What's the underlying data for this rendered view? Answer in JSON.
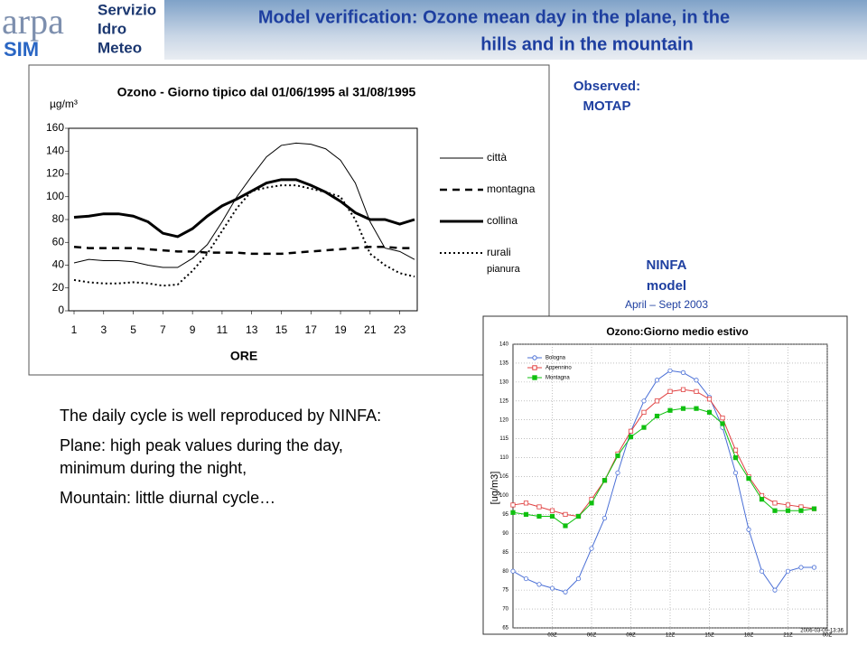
{
  "header": {
    "logo": {
      "brand": "arpa",
      "service_lines": [
        "Servizio",
        "Idro",
        "Meteo"
      ],
      "badge": "SIM"
    },
    "title_lines": [
      "Model verification: Ozone mean day in the plane, in the",
      "hills and in the mountain"
    ]
  },
  "observed_note": [
    "Observed:",
    "MOTAP"
  ],
  "model_note": [
    "NINFA",
    "model",
    "April – Sept 2003"
  ],
  "body": [
    "The daily cycle is well reproduced by NINFA:",
    "Plane: high peak values during the day, minimum during the night,",
    "Mountain:  little diurnal cycle…"
  ],
  "chart_data": [
    {
      "type": "line",
      "title": "Ozono - Giorno tipico dal 01/06/1995 al 31/08/1995",
      "y_label": "µg/m³",
      "x_label": "ORE",
      "x": [
        1,
        2,
        3,
        4,
        5,
        6,
        7,
        8,
        9,
        10,
        11,
        12,
        13,
        14,
        15,
        16,
        17,
        18,
        19,
        20,
        21,
        22,
        23,
        24
      ],
      "xlim": [
        1,
        24
      ],
      "xticks": [
        1,
        3,
        5,
        7,
        9,
        11,
        13,
        15,
        17,
        19,
        21,
        23
      ],
      "ylim": [
        0,
        160
      ],
      "yticks": [
        0,
        20,
        40,
        60,
        80,
        100,
        120,
        140,
        160
      ],
      "grid": false,
      "legend": "right",
      "series": [
        {
          "name": "città",
          "color": "#000000",
          "style": "solid",
          "line_width": 1,
          "values": [
            42,
            45,
            44,
            44,
            43,
            40,
            38,
            38,
            46,
            58,
            78,
            100,
            118,
            135,
            145,
            147,
            146,
            142,
            132,
            112,
            78,
            55,
            52,
            45
          ]
        },
        {
          "name": "montagna",
          "color": "#000000",
          "style": "dashed",
          "line_width": 2.5,
          "values": [
            56,
            55,
            55,
            55,
            55,
            54,
            53,
            52,
            52,
            51,
            51,
            51,
            50,
            50,
            50,
            51,
            52,
            53,
            54,
            55,
            56,
            56,
            55,
            55
          ]
        },
        {
          "name": "collina",
          "color": "#000000",
          "style": "solid",
          "line_width": 3,
          "values": [
            82,
            83,
            85,
            85,
            83,
            78,
            68,
            65,
            72,
            83,
            92,
            98,
            105,
            112,
            115,
            115,
            110,
            104,
            96,
            86,
            80,
            80,
            76,
            80
          ]
        },
        {
          "name": "rurali",
          "color": "#000000",
          "style": "dotted",
          "line_width": 2,
          "values": [
            27,
            25,
            24,
            24,
            25,
            24,
            22,
            23,
            35,
            50,
            70,
            90,
            105,
            108,
            110,
            110,
            107,
            104,
            100,
            80,
            50,
            40,
            33,
            30
          ]
        }
      ],
      "legend_note": "pianura"
    },
    {
      "type": "line",
      "title": "Ozono:Giorno medio estivo",
      "y_label": "[ug/m3]",
      "footer": "2006-03-09-13:36",
      "x": [
        0,
        1,
        2,
        3,
        4,
        5,
        6,
        7,
        8,
        9,
        10,
        11,
        12,
        13,
        14,
        15,
        16,
        17,
        18,
        19,
        20,
        21,
        22,
        23
      ],
      "xlim": [
        0,
        24
      ],
      "xticks": [
        {
          "value": 3,
          "label": "03Z"
        },
        {
          "value": 6,
          "label": "06Z"
        },
        {
          "value": 9,
          "label": "09Z"
        },
        {
          "value": 12,
          "label": "12Z"
        },
        {
          "value": 15,
          "label": "15Z"
        },
        {
          "value": 18,
          "label": "18Z"
        },
        {
          "value": 21,
          "label": "21Z"
        },
        {
          "value": 24,
          "label": "00Z"
        }
      ],
      "ylim": [
        65,
        140
      ],
      "yticks": [
        65,
        70,
        75,
        80,
        85,
        90,
        95,
        100,
        105,
        110,
        115,
        120,
        125,
        130,
        135,
        140
      ],
      "grid": true,
      "legend": "upper left",
      "series": [
        {
          "name": "Bologna",
          "color": "#4a6fd6",
          "marker": "circle",
          "style": "solid",
          "line_width": 1,
          "values": [
            80,
            78,
            76.5,
            75.5,
            74.5,
            78,
            86,
            94,
            106,
            117,
            125,
            130.5,
            133,
            132.5,
            130.5,
            126,
            118,
            106,
            91,
            80,
            75,
            80,
            81,
            81
          ]
        },
        {
          "name": "Appennino",
          "color": "#e04040",
          "marker": "square",
          "style": "solid",
          "line_width": 1,
          "values": [
            97.5,
            98,
            97,
            96,
            95,
            94.5,
            99,
            104,
            111,
            117,
            122,
            125,
            127.5,
            128,
            127.5,
            125.5,
            120.5,
            112,
            105,
            100,
            98,
            97.5,
            97,
            96.5
          ]
        },
        {
          "name": "Montagna",
          "color": "#10c010",
          "marker": "square-filled",
          "style": "solid",
          "line_width": 1,
          "values": [
            95.5,
            95,
            94.5,
            94.5,
            92,
            94.5,
            98,
            104,
            110.5,
            115.5,
            118,
            121,
            122.5,
            123,
            123,
            122,
            119,
            110,
            104.5,
            99,
            96,
            96,
            96,
            96.5
          ]
        }
      ]
    }
  ]
}
